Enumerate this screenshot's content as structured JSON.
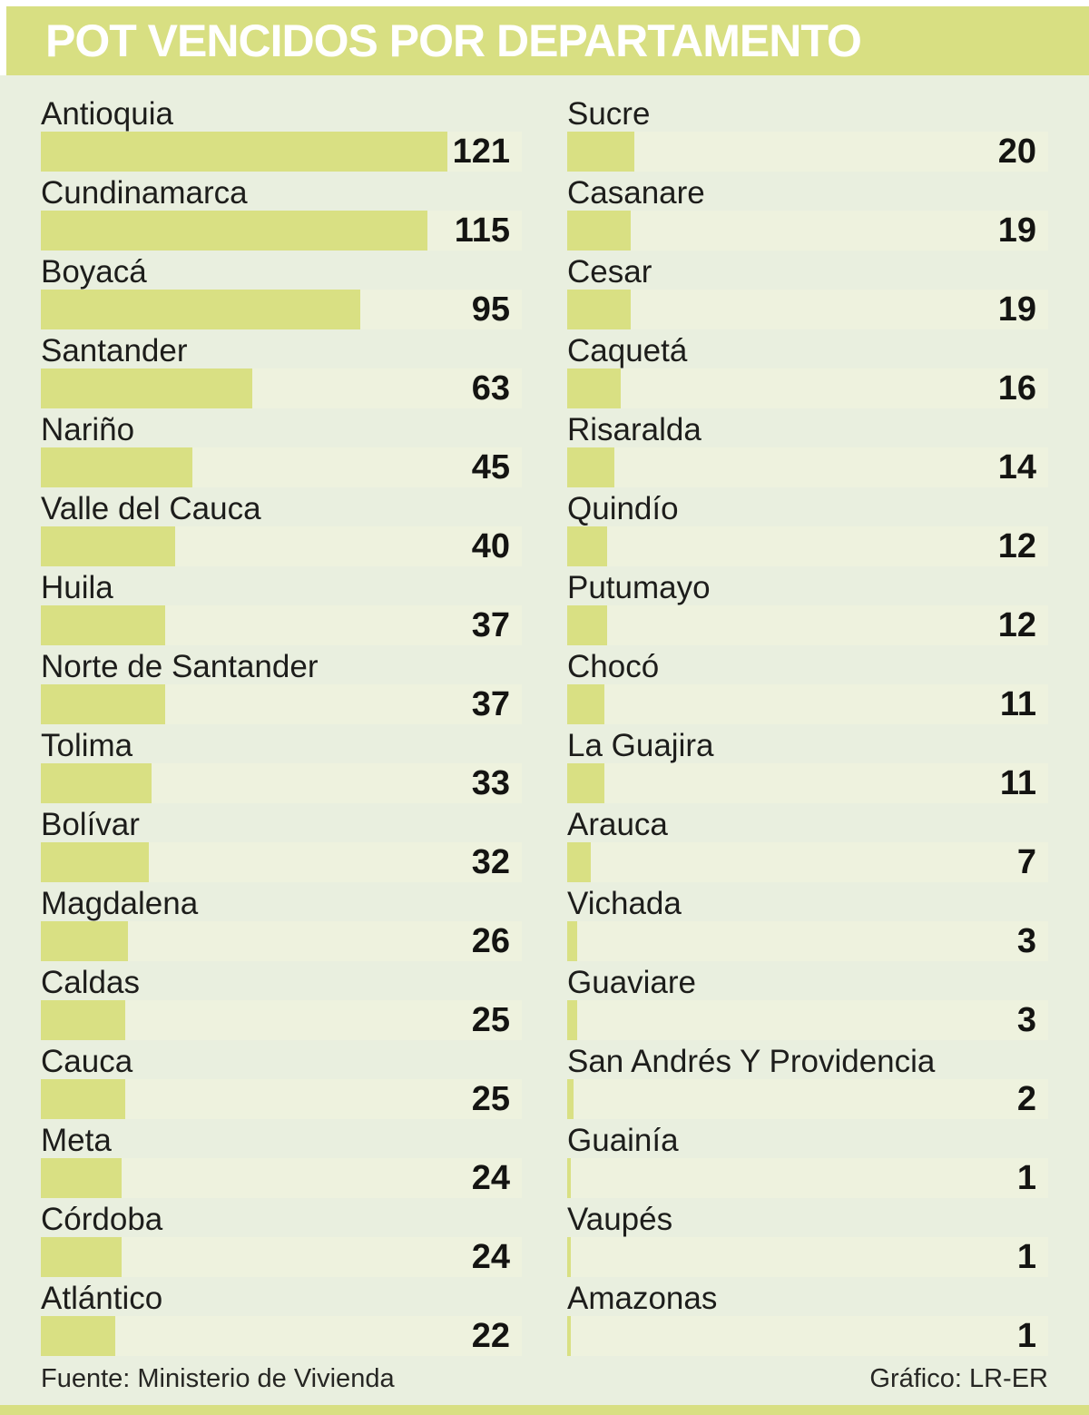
{
  "title": "POT VENCIDOS POR DEPARTAMENTO",
  "footer": {
    "source": "Fuente: Ministerio de Vivienda",
    "credit": "Gráfico: LR-ER"
  },
  "colors": {
    "background": "#e9efdf",
    "band": "#d8df82",
    "bar_fill": "#d9e083",
    "bar_track": "#eef2de",
    "title_text": "#ffffff",
    "label_text": "#1d1d1b",
    "value_text": "#141412",
    "footer_text": "#262623"
  },
  "chart_data": {
    "type": "bar",
    "orientation": "horizontal",
    "title": "POT VENCIDOS POR DEPARTAMENTO",
    "value_range": [
      0,
      143
    ],
    "scale_max": 143,
    "grid": false,
    "legend": false,
    "columns": [
      {
        "items": [
          {
            "label": "Antioquia",
            "value": 121
          },
          {
            "label": "Cundinamarca",
            "value": 115
          },
          {
            "label": "Boyacá",
            "value": 95
          },
          {
            "label": "Santander",
            "value": 63
          },
          {
            "label": "Nariño",
            "value": 45
          },
          {
            "label": "Valle del Cauca",
            "value": 40
          },
          {
            "label": "Huila",
            "value": 37
          },
          {
            "label": "Norte de Santander",
            "value": 37
          },
          {
            "label": "Tolima",
            "value": 33
          },
          {
            "label": "Bolívar",
            "value": 32
          },
          {
            "label": "Magdalena",
            "value": 26
          },
          {
            "label": "Caldas",
            "value": 25
          },
          {
            "label": "Cauca",
            "value": 25
          },
          {
            "label": "Meta",
            "value": 24
          },
          {
            "label": "Córdoba",
            "value": 24
          },
          {
            "label": "Atlántico",
            "value": 22
          }
        ]
      },
      {
        "items": [
          {
            "label": "Sucre",
            "value": 20
          },
          {
            "label": "Casanare",
            "value": 19
          },
          {
            "label": "Cesar",
            "value": 19
          },
          {
            "label": "Caquetá",
            "value": 16
          },
          {
            "label": "Risaralda",
            "value": 14
          },
          {
            "label": "Quindío",
            "value": 12
          },
          {
            "label": "Putumayo",
            "value": 12
          },
          {
            "label": "Chocó",
            "value": 11
          },
          {
            "label": "La Guajira",
            "value": 11
          },
          {
            "label": "Arauca",
            "value": 7
          },
          {
            "label": "Vichada",
            "value": 3
          },
          {
            "label": "Guaviare",
            "value": 3
          },
          {
            "label": "San Andrés Y Providencia",
            "value": 2
          },
          {
            "label": "Guainía",
            "value": 1
          },
          {
            "label": "Vaupés",
            "value": 1
          },
          {
            "label": "Amazonas",
            "value": 1
          }
        ]
      }
    ]
  }
}
